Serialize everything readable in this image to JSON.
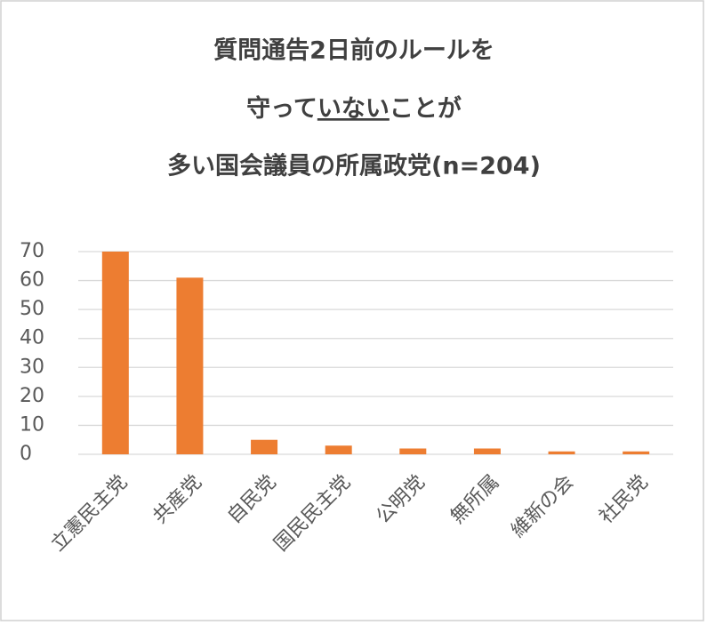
{
  "chart_data": {
    "type": "bar",
    "title": [
      "質問通告2日前のルールを",
      "守って",
      "いない",
      "ことが",
      "多い国会議員の所属政党(n=204)"
    ],
    "categories": [
      "立憲民主党",
      "共産党",
      "自民党",
      "国民民主党",
      "公明党",
      "無所属",
      "維新の会",
      "社民党"
    ],
    "values": [
      70,
      61,
      5,
      3,
      2,
      2,
      1,
      1
    ],
    "color": "#ed7d31",
    "ylim": [
      0,
      70
    ],
    "yticks": [
      0,
      10,
      20,
      30,
      40,
      50,
      60,
      70
    ],
    "grid": true
  }
}
